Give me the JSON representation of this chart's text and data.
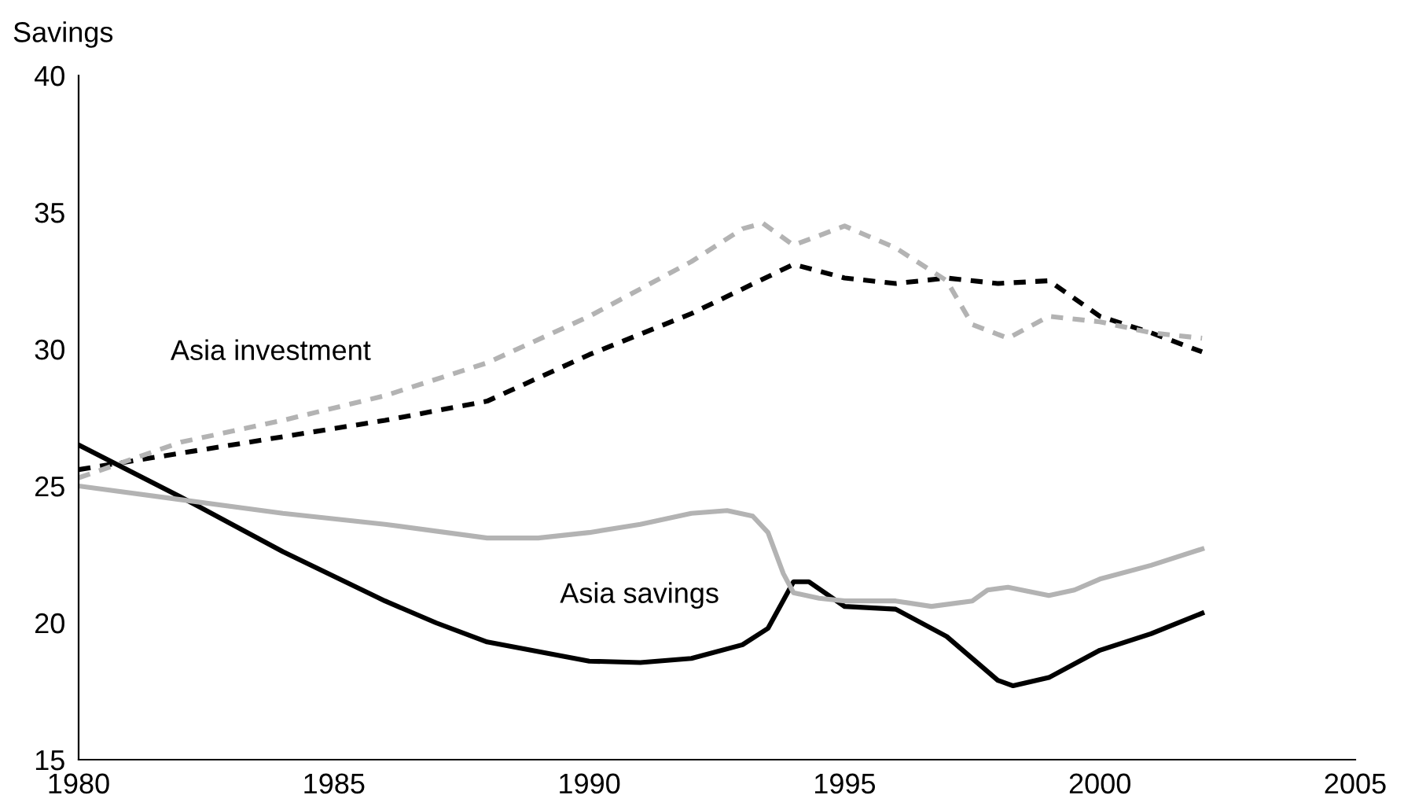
{
  "chart_data": {
    "type": "line",
    "ylabel": "Savings",
    "xlim": [
      1980,
      2005
    ],
    "xticks": [
      1980,
      1985,
      1990,
      1995,
      2000,
      2005
    ],
    "ylim": [
      15,
      40
    ],
    "yticks": [
      15,
      20,
      25,
      30,
      35,
      40
    ],
    "grid": false,
    "legend": false,
    "series": [
      {
        "color": "#000000",
        "line_style": "dashed",
        "x": [
          1980,
          1982,
          1984,
          1986,
          1988,
          1990,
          1992,
          1993,
          1994,
          1995,
          1996,
          1997,
          1998,
          1999,
          2000,
          2001,
          2002
        ],
        "values": [
          25.6,
          26.2,
          26.8,
          27.4,
          28.1,
          29.8,
          31.3,
          32.2,
          33.1,
          32.6,
          32.4,
          32.6,
          32.4,
          32.5,
          31.2,
          30.6,
          29.9
        ]
      },
      {
        "color": "#b3b3b3",
        "line_style": "dashed",
        "x": [
          1980,
          1982,
          1984,
          1986,
          1988,
          1990,
          1992,
          1993,
          1993.4,
          1994,
          1995,
          1996,
          1997,
          1997.5,
          1998.2,
          1999,
          2000,
          2001,
          2002
        ],
        "values": [
          25.3,
          26.6,
          27.4,
          28.3,
          29.5,
          31.2,
          33.2,
          34.4,
          34.6,
          33.8,
          34.5,
          33.7,
          32.5,
          30.9,
          30.4,
          31.2,
          31.0,
          30.6,
          30.4
        ]
      },
      {
        "color": "#000000",
        "line_style": "solid",
        "x": [
          1980,
          1982,
          1984,
          1986,
          1987,
          1988,
          1990,
          1991,
          1992,
          1993,
          1993.5,
          1994,
          1994.3,
          1995,
          1996,
          1997,
          1998,
          1998.3,
          1999,
          2000,
          2001,
          2002
        ],
        "values": [
          26.5,
          24.6,
          22.6,
          20.8,
          20.0,
          19.3,
          18.6,
          18.55,
          18.7,
          19.2,
          19.8,
          21.5,
          21.5,
          20.6,
          20.5,
          19.5,
          17.9,
          17.7,
          18.0,
          19.0,
          19.6,
          20.35
        ]
      },
      {
        "color": "#b3b3b3",
        "line_style": "solid",
        "x": [
          1980,
          1982,
          1984,
          1986,
          1988,
          1989,
          1990,
          1991,
          1992,
          1992.7,
          1993.2,
          1993.5,
          1993.8,
          1994,
          1994.5,
          1995,
          1996,
          1996.7,
          1997.5,
          1997.8,
          1998.2,
          1999,
          1999.5,
          2000,
          2001,
          2002
        ],
        "values": [
          25.0,
          24.5,
          24.0,
          23.6,
          23.1,
          23.1,
          23.3,
          23.6,
          24.0,
          24.1,
          23.9,
          23.3,
          21.8,
          21.1,
          20.9,
          20.8,
          20.8,
          20.6,
          20.8,
          21.2,
          21.3,
          21.0,
          21.2,
          21.6,
          22.1,
          22.7
        ]
      }
    ],
    "annotations": [
      "Asia investment",
      "Asia savings"
    ]
  }
}
